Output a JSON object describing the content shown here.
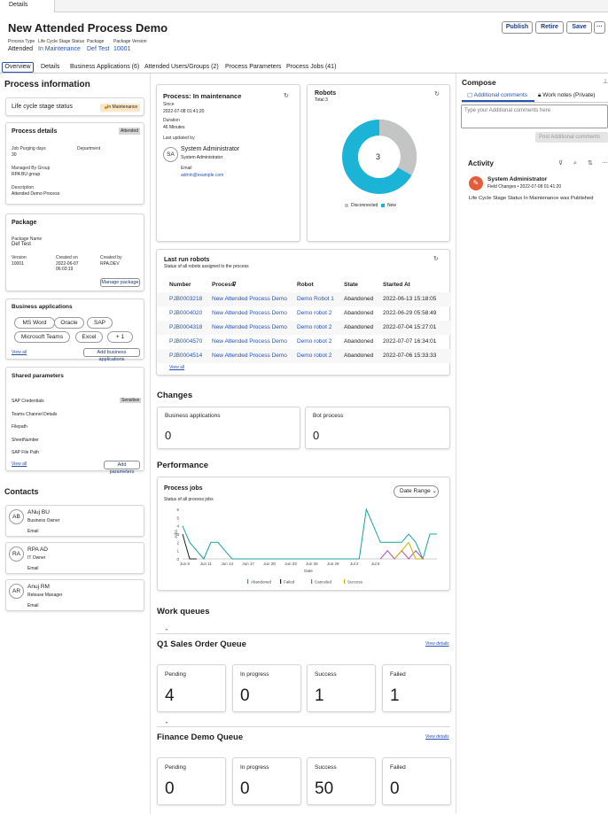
{
  "top_tab": "Details",
  "header": {
    "title": "New Attended Process Demo",
    "meta": [
      {
        "label": "Process Type",
        "value": "Attended"
      },
      {
        "label": "Life Cycle Stage Status",
        "value": "In Maintenance"
      },
      {
        "label": "Package",
        "value": "Def Test"
      },
      {
        "label": "Package Version",
        "value": "10001"
      }
    ],
    "buttons": {
      "publish": "Publish",
      "retire": "Retire",
      "save": "Save",
      "more": "···"
    }
  },
  "tabs": [
    "Overview",
    "Details",
    "Business Applications (6)",
    "Attended Users/Groups (2)",
    "Process Parameters",
    "Process Jobs (41)"
  ],
  "left": {
    "title": "Process information",
    "lifecycle": {
      "label": "Life cycle stage status",
      "badge": "In Maintenance"
    },
    "details": {
      "title": "Process details",
      "badge": "Attended",
      "purging_label": "Job Purging days",
      "purging_value": "30",
      "dept_label": "Department",
      "managed_label": "Managed By Group",
      "managed_value": "RPA BU group",
      "desc_label": "Description",
      "desc_value": "Attended Demo Process"
    },
    "package": {
      "title": "Package",
      "name_label": "Package Name",
      "name_value": "Def Test",
      "version_label": "Version",
      "version_value": "10001",
      "created_on_label": "Created on",
      "created_on_value": "2022-06-07 06:03:19",
      "created_by_label": "Created by",
      "created_by_value": "RPA.DEV",
      "manage": "Manage package"
    },
    "apps": {
      "title": "Business applications",
      "chips": [
        "MS Word",
        "Oracle",
        "SAP",
        "Microsoft Teams",
        "Excel",
        "+ 1"
      ],
      "view_all": "View all",
      "add": "Add business applications"
    },
    "params": {
      "title": "Shared parameters",
      "items": [
        "SAP Credentials",
        "Teams Channel Details",
        "Filepath",
        "SheetNumber",
        "SAP File Path"
      ],
      "sensitive": "Sensitive",
      "view_all": "View all",
      "add": "Add parameters"
    },
    "contacts_title": "Contacts",
    "contacts": [
      {
        "initials": "AB",
        "name": "ANuj BU",
        "role": "Business Owner",
        "email": "Email"
      },
      {
        "initials": "RA",
        "name": "RPA AD",
        "role": "IT Owner",
        "email": "Email"
      },
      {
        "initials": "AR",
        "name": "Anuj RM",
        "role": "Release Manager",
        "email": "Email"
      }
    ]
  },
  "center": {
    "status": {
      "title": "Process: In maintenance",
      "since_label": "Since",
      "since_value": "2022-07-08 01:41:20",
      "duration_label": "Duration",
      "duration_value": "46 Minutes",
      "updated_label": "Last updated by",
      "user_initials": "SA",
      "user_name": "System Administrator",
      "user_role": "System Administrator",
      "email_label": "Email",
      "email_value": "admin@example.com"
    },
    "robots": {
      "title": "Robots",
      "total": "Total 3",
      "center": "3",
      "legend": [
        "Disconnected",
        "New"
      ],
      "colors": {
        "disconnected": "#c4c4c4",
        "new": "#1bb3d6"
      },
      "values": {
        "disconnected": 1,
        "new": 2
      }
    },
    "last_run": {
      "title": "Last run robots",
      "subtitle": "Status of all robots assigned to the process",
      "headers": [
        "Number",
        "Process",
        "Robot",
        "State",
        "Started At"
      ],
      "rows": [
        [
          "PJB0003218",
          "New Attended Process Demo",
          "Demo Robot 1",
          "Abandoned",
          "2022-06-13 15:18:05"
        ],
        [
          "PJB0004020",
          "New Attended Process Demo",
          "Demo robot 2",
          "Abandoned",
          "2022-06-29 05:58:49"
        ],
        [
          "PJB0004318",
          "New Attended Process Demo",
          "Demo robot 2",
          "Abandoned",
          "2022-07-04 15:27:01"
        ],
        [
          "PJB0004570",
          "New Attended Process Demo",
          "Demo robot 2",
          "Abandoned",
          "2022-07-07 16:34:01"
        ],
        [
          "PJB0004514",
          "New Attended Process Demo",
          "Demo robot 2",
          "Abandoned",
          "2022-07-06 15:33:33"
        ]
      ],
      "view_all": "View all"
    },
    "changes": {
      "title": "Changes",
      "items": [
        {
          "label": "Business applications",
          "value": "0"
        },
        {
          "label": "Bot process",
          "value": "0"
        }
      ]
    },
    "performance": {
      "title": "Performance",
      "card_title": "Process jobs",
      "card_sub": "Status of all process jobs",
      "date_range": "Date Range",
      "ylabel": "Jobs",
      "xlabel": "Date"
    },
    "work_queues_title": "Work queues",
    "queues": [
      {
        "name": "Q1 Sales Order Queue",
        "view": "View details",
        "metrics": [
          {
            "label": "Pending",
            "value": "4"
          },
          {
            "label": "In progress",
            "value": "0"
          },
          {
            "label": "Success",
            "value": "1"
          },
          {
            "label": "Failed",
            "value": "1"
          }
        ]
      },
      {
        "name": "Finance Demo Queue",
        "view": "View details",
        "metrics": [
          {
            "label": "Pending",
            "value": "0"
          },
          {
            "label": "In progress",
            "value": "0"
          },
          {
            "label": "Success",
            "value": "50"
          },
          {
            "label": "Failed",
            "value": "0"
          }
        ]
      }
    ]
  },
  "right": {
    "compose": "Compose",
    "tab1": "Additional comments",
    "tab2": "Work notes (Private)",
    "placeholder": "Type your Additional comments here",
    "post": "Post Additional comments",
    "activity": "Activity",
    "act_user": "System Administrator",
    "act_meta": "Field Changes • 2022-07-08 01:41:20",
    "act_text": "Life Cycle Stage Status  In Maintenance was Published"
  },
  "chart_data": {
    "type": "line",
    "title": "Process jobs",
    "subtitle": "Status of all process jobs",
    "xlabel": "Date",
    "ylabel": "Jobs",
    "ylim": [
      0,
      6
    ],
    "x_ticks": [
      "Jun 8",
      "Jun 11",
      "Jun 14",
      "Jun 17",
      "Jun 20",
      "Jun 23",
      "Jun 26",
      "Jun 29",
      "Jul 2",
      "Jul 5"
    ],
    "y_ticks": [
      "0",
      "1",
      "2",
      "3",
      "4",
      "5",
      "6"
    ],
    "series": [
      {
        "name": "Abandoned",
        "color": "#1aa39a",
        "points": [
          [
            0,
            4
          ],
          [
            1,
            2
          ],
          [
            3,
            0
          ],
          [
            4,
            2
          ],
          [
            5,
            2
          ],
          [
            6,
            1
          ],
          [
            7,
            0
          ],
          [
            8,
            0
          ],
          [
            24,
            0
          ],
          [
            25,
            0
          ],
          [
            26,
            6
          ],
          [
            27,
            4
          ],
          [
            28,
            2
          ],
          [
            29,
            2
          ],
          [
            30,
            2
          ],
          [
            31,
            2
          ],
          [
            32,
            3
          ],
          [
            33,
            2
          ],
          [
            34,
            0
          ],
          [
            35,
            3
          ],
          [
            36,
            3
          ]
        ]
      },
      {
        "name": "Failed",
        "color": "#1d1d1d",
        "points": [
          [
            0,
            3
          ],
          [
            1,
            0
          ],
          [
            2,
            0
          ]
        ]
      },
      {
        "name": "Canceled",
        "color": "#b44fb0",
        "points": [
          [
            28,
            0
          ],
          [
            29,
            1
          ],
          [
            30,
            0
          ],
          [
            31,
            1
          ],
          [
            32,
            0
          ],
          [
            33,
            1
          ],
          [
            34,
            0
          ]
        ]
      },
      {
        "name": "Success",
        "color": "#c8b400",
        "points": [
          [
            30,
            0
          ],
          [
            32,
            2
          ],
          [
            33,
            0
          ],
          [
            34,
            0
          ]
        ]
      }
    ]
  }
}
